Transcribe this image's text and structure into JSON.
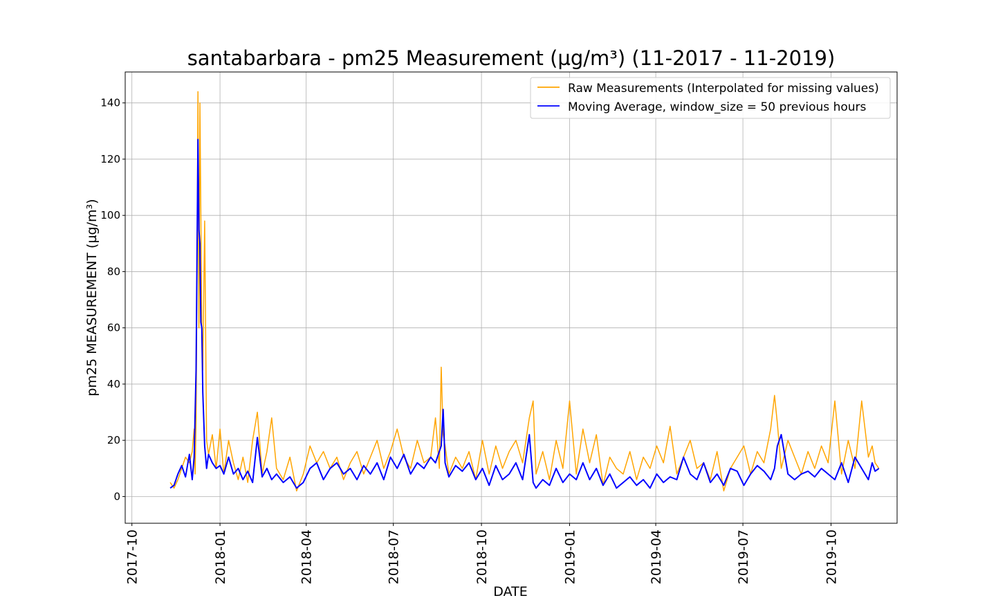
{
  "chart_data": {
    "type": "line",
    "title": "santabarbara - pm25 Measurement (µg/m³) (11-2017 - 11-2019)",
    "xlabel": "DATE",
    "ylabel": "pm25 MEASUREMENT (µg/m³)",
    "x_tick_labels": [
      "2017-10",
      "2018-01",
      "2018-04",
      "2018-07",
      "2018-10",
      "2019-01",
      "2019-04",
      "2019-07",
      "2019-10"
    ],
    "x_ticks": [
      "2017-10-01",
      "2018-01-01",
      "2018-04-01",
      "2018-07-01",
      "2018-10-01",
      "2019-01-01",
      "2019-04-01",
      "2019-07-01",
      "2019-10-01"
    ],
    "xlim": [
      "2017-09-24",
      "2019-12-09"
    ],
    "y_ticks": [
      0,
      20,
      40,
      60,
      80,
      100,
      120,
      140
    ],
    "y_tick_labels": [
      "0",
      "20",
      "40",
      "60",
      "80",
      "100",
      "120",
      "140"
    ],
    "ylim": [
      -9.5,
      151
    ],
    "grid": true,
    "legend": "top-right",
    "series": [
      {
        "name": "Raw Measurements (Interpolated for missing values)",
        "color": "#ffa500",
        "x": [
          "2017-11-10",
          "2017-11-14",
          "2017-11-18",
          "2017-11-22",
          "2017-11-26",
          "2017-11-30",
          "2017-12-03",
          "2017-12-05",
          "2017-12-06",
          "2017-12-07",
          "2017-12-08",
          "2017-12-09",
          "2017-12-10",
          "2017-12-11",
          "2017-12-12",
          "2017-12-13",
          "2017-12-14",
          "2017-12-16",
          "2017-12-18",
          "2017-12-20",
          "2017-12-24",
          "2017-12-28",
          "2018-01-01",
          "2018-01-05",
          "2018-01-10",
          "2018-01-15",
          "2018-01-20",
          "2018-01-25",
          "2018-01-30",
          "2018-02-04",
          "2018-02-09",
          "2018-02-14",
          "2018-02-19",
          "2018-02-24",
          "2018-03-01",
          "2018-03-08",
          "2018-03-15",
          "2018-03-22",
          "2018-03-29",
          "2018-04-05",
          "2018-04-12",
          "2018-04-19",
          "2018-04-26",
          "2018-05-03",
          "2018-05-10",
          "2018-05-17",
          "2018-05-24",
          "2018-05-31",
          "2018-06-07",
          "2018-06-14",
          "2018-06-21",
          "2018-06-28",
          "2018-07-05",
          "2018-07-12",
          "2018-07-19",
          "2018-07-26",
          "2018-08-02",
          "2018-08-09",
          "2018-08-14",
          "2018-08-18",
          "2018-08-20",
          "2018-08-22",
          "2018-08-24",
          "2018-08-28",
          "2018-09-04",
          "2018-09-11",
          "2018-09-18",
          "2018-09-25",
          "2018-10-02",
          "2018-10-09",
          "2018-10-16",
          "2018-10-23",
          "2018-10-30",
          "2018-11-06",
          "2018-11-13",
          "2018-11-20",
          "2018-11-24",
          "2018-11-27",
          "2018-12-04",
          "2018-12-11",
          "2018-12-18",
          "2018-12-25",
          "2019-01-01",
          "2019-01-08",
          "2019-01-15",
          "2019-01-22",
          "2019-01-29",
          "2019-02-05",
          "2019-02-12",
          "2019-02-19",
          "2019-02-26",
          "2019-03-05",
          "2019-03-12",
          "2019-03-19",
          "2019-03-26",
          "2019-04-02",
          "2019-04-09",
          "2019-04-16",
          "2019-04-23",
          "2019-04-30",
          "2019-05-07",
          "2019-05-14",
          "2019-05-21",
          "2019-05-28",
          "2019-06-04",
          "2019-06-11",
          "2019-06-18",
          "2019-06-25",
          "2019-07-02",
          "2019-07-09",
          "2019-07-16",
          "2019-07-23",
          "2019-07-30",
          "2019-08-03",
          "2019-08-06",
          "2019-08-10",
          "2019-08-17",
          "2019-08-24",
          "2019-08-31",
          "2019-09-07",
          "2019-09-14",
          "2019-09-21",
          "2019-09-28",
          "2019-10-05",
          "2019-10-12",
          "2019-10-19",
          "2019-10-26",
          "2019-11-02",
          "2019-11-09",
          "2019-11-13",
          "2019-11-16",
          "2019-11-20"
        ],
        "values": [
          5,
          3,
          6,
          10,
          14,
          12,
          16,
          24,
          8,
          28,
          75,
          144,
          60,
          140,
          100,
          55,
          45,
          98,
          20,
          15,
          22,
          10,
          24,
          8,
          20,
          12,
          6,
          14,
          5,
          20,
          30,
          8,
          16,
          28,
          10,
          6,
          14,
          2,
          8,
          18,
          12,
          16,
          10,
          14,
          6,
          12,
          16,
          8,
          14,
          20,
          10,
          16,
          24,
          14,
          10,
          20,
          12,
          14,
          28,
          10,
          46,
          22,
          18,
          8,
          14,
          10,
          16,
          6,
          20,
          8,
          18,
          10,
          16,
          20,
          12,
          28,
          34,
          8,
          16,
          6,
          20,
          10,
          34,
          8,
          24,
          12,
          22,
          4,
          14,
          10,
          8,
          16,
          6,
          14,
          10,
          18,
          12,
          25,
          8,
          14,
          20,
          10,
          12,
          6,
          16,
          2,
          10,
          14,
          18,
          8,
          16,
          12,
          24,
          36,
          26,
          10,
          20,
          14,
          8,
          16,
          10,
          18,
          12,
          34,
          8,
          20,
          10,
          34,
          14,
          18,
          12,
          10
        ]
      },
      {
        "name": "Moving Average, window_size = 50 previous hours",
        "color": "#0000ff",
        "x": [
          "2017-11-10",
          "2017-11-14",
          "2017-11-18",
          "2017-11-22",
          "2017-11-26",
          "2017-11-30",
          "2017-12-03",
          "2017-12-05",
          "2017-12-07",
          "2017-12-09",
          "2017-12-10",
          "2017-12-11",
          "2017-12-12",
          "2017-12-13",
          "2017-12-14",
          "2017-12-16",
          "2017-12-18",
          "2017-12-20",
          "2017-12-24",
          "2017-12-28",
          "2018-01-01",
          "2018-01-05",
          "2018-01-10",
          "2018-01-15",
          "2018-01-20",
          "2018-01-25",
          "2018-01-30",
          "2018-02-04",
          "2018-02-09",
          "2018-02-14",
          "2018-02-19",
          "2018-02-24",
          "2018-03-01",
          "2018-03-08",
          "2018-03-15",
          "2018-03-22",
          "2018-03-29",
          "2018-04-05",
          "2018-04-12",
          "2018-04-19",
          "2018-04-26",
          "2018-05-03",
          "2018-05-10",
          "2018-05-17",
          "2018-05-24",
          "2018-05-31",
          "2018-06-07",
          "2018-06-14",
          "2018-06-21",
          "2018-06-28",
          "2018-07-05",
          "2018-07-12",
          "2018-07-19",
          "2018-07-26",
          "2018-08-02",
          "2018-08-09",
          "2018-08-14",
          "2018-08-20",
          "2018-08-22",
          "2018-08-24",
          "2018-08-28",
          "2018-09-04",
          "2018-09-11",
          "2018-09-18",
          "2018-09-25",
          "2018-10-02",
          "2018-10-09",
          "2018-10-16",
          "2018-10-23",
          "2018-10-30",
          "2018-11-06",
          "2018-11-13",
          "2018-11-20",
          "2018-11-24",
          "2018-11-27",
          "2018-12-04",
          "2018-12-11",
          "2018-12-18",
          "2018-12-25",
          "2019-01-01",
          "2019-01-08",
          "2019-01-15",
          "2019-01-22",
          "2019-01-29",
          "2019-02-05",
          "2019-02-12",
          "2019-02-19",
          "2019-02-26",
          "2019-03-05",
          "2019-03-12",
          "2019-03-19",
          "2019-03-26",
          "2019-04-02",
          "2019-04-09",
          "2019-04-16",
          "2019-04-23",
          "2019-04-30",
          "2019-05-07",
          "2019-05-14",
          "2019-05-21",
          "2019-05-28",
          "2019-06-04",
          "2019-06-11",
          "2019-06-18",
          "2019-06-25",
          "2019-07-02",
          "2019-07-09",
          "2019-07-16",
          "2019-07-23",
          "2019-07-30",
          "2019-08-03",
          "2019-08-06",
          "2019-08-10",
          "2019-08-17",
          "2019-08-24",
          "2019-08-31",
          "2019-09-07",
          "2019-09-14",
          "2019-09-21",
          "2019-09-28",
          "2019-10-05",
          "2019-10-12",
          "2019-10-19",
          "2019-10-26",
          "2019-11-02",
          "2019-11-09",
          "2019-11-13",
          "2019-11-16",
          "2019-11-20"
        ],
        "values": [
          3,
          4,
          8,
          11,
          7,
          15,
          6,
          14,
          45,
          127,
          95,
          90,
          62,
          60,
          37,
          18,
          10,
          15,
          12,
          10,
          11,
          8,
          14,
          8,
          10,
          6,
          9,
          5,
          21,
          7,
          10,
          6,
          8,
          5,
          7,
          3,
          5,
          10,
          12,
          6,
          10,
          12,
          8,
          10,
          6,
          11,
          8,
          12,
          6,
          14,
          10,
          15,
          8,
          12,
          10,
          14,
          12,
          18,
          31,
          12,
          7,
          11,
          9,
          12,
          6,
          10,
          4,
          11,
          6,
          8,
          12,
          6,
          22,
          5,
          3,
          6,
          4,
          10,
          5,
          8,
          6,
          12,
          6,
          10,
          4,
          8,
          3,
          5,
          7,
          4,
          6,
          3,
          8,
          5,
          7,
          6,
          14,
          8,
          6,
          12,
          5,
          8,
          4,
          10,
          9,
          4,
          8,
          11,
          9,
          6,
          10,
          18,
          22,
          8,
          6,
          8,
          9,
          7,
          10,
          8,
          6,
          12,
          5,
          14,
          10,
          6,
          12,
          9,
          10
        ]
      }
    ]
  }
}
